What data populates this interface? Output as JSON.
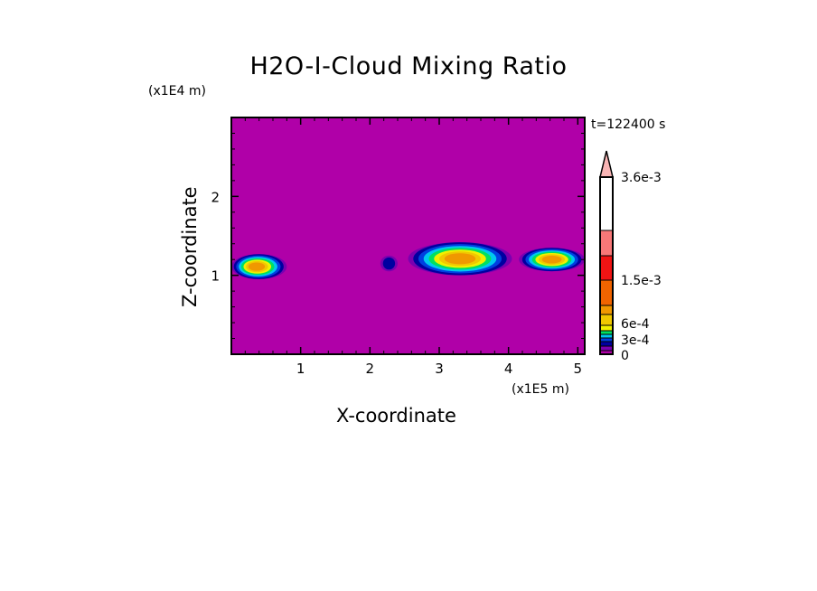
{
  "chart_data": {
    "type": "heatmap",
    "title": "H2O-I-Cloud Mixing Ratio",
    "xlabel": "X-coordinate",
    "ylabel": "Z-coordinate",
    "x_scale_label": "(x1E5 m)",
    "y_scale_label": "(x1E4 m)",
    "time_label": "t=122400 s",
    "xlim": [
      0,
      5.1
    ],
    "ylim": [
      0,
      3
    ],
    "x_ticks": [
      "1",
      "2",
      "3",
      "4",
      "5"
    ],
    "y_ticks": [
      "1",
      "2"
    ],
    "background_color": "#B000A8",
    "colorbar": {
      "labels": [
        "0",
        "3e-4",
        "6e-4",
        "1.5e-3",
        "3.6e-3"
      ],
      "colors": [
        "#B000A8",
        "#7A00B0",
        "#0000A0",
        "#0040E0",
        "#00C8F0",
        "#00E060",
        "#F0F000",
        "#F0C800",
        "#F09800",
        "#F06400",
        "#F01414",
        "#F87878",
        "#F8B4B4"
      ],
      "extend": "max"
    },
    "features": [
      {
        "x": [
          0,
          0.8
        ],
        "z": [
          0.95,
          1.27
        ],
        "peak_level": 8
      },
      {
        "x": [
          2.55,
          4.05
        ],
        "z": [
          1.0,
          1.42
        ],
        "peak_level": 8
      },
      {
        "x": [
          4.15,
          5.1
        ],
        "z": [
          1.05,
          1.35
        ],
        "peak_level": 8
      },
      {
        "x": [
          2.15,
          2.4
        ],
        "z": [
          1.05,
          1.25
        ],
        "peak_level": 2
      }
    ]
  }
}
